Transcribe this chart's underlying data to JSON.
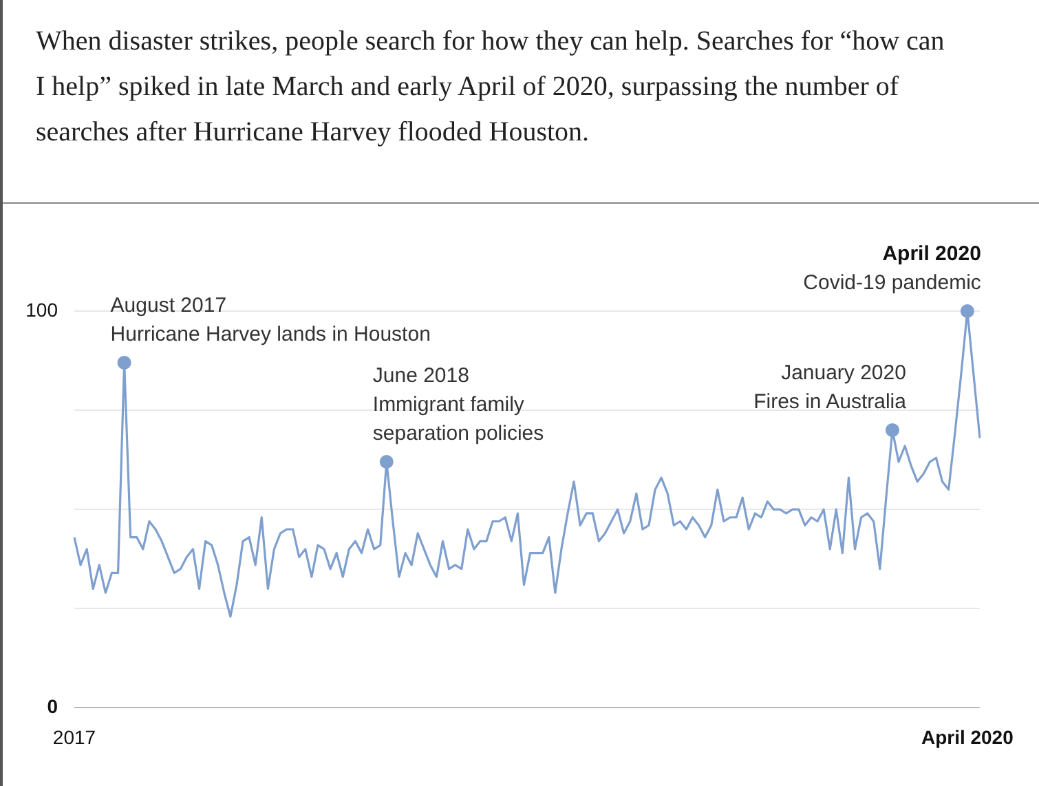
{
  "chart_data": {
    "type": "line",
    "title": "When disaster strikes, people search for how they can help. Searches for “how can I help” spiked in late March and early April of 2020, surpassing the number of searches after Hurricane Harvey flooded Houston.",
    "categories": [
      "2017",
      null,
      null,
      null,
      null,
      null,
      null,
      null,
      null,
      null,
      null,
      null,
      null,
      null,
      null,
      null,
      null,
      null,
      null,
      null,
      null,
      null,
      null,
      null,
      null,
      null,
      null,
      null,
      null,
      null,
      null,
      null,
      null,
      null,
      null,
      null,
      null,
      null,
      null,
      null,
      null,
      null,
      null,
      null,
      null,
      null,
      null,
      null,
      null,
      null,
      null,
      null,
      null,
      null,
      null,
      null,
      null,
      null,
      null,
      null,
      null,
      null,
      null,
      null,
      null,
      null,
      null,
      null,
      null,
      null,
      null,
      null,
      null,
      null,
      null,
      null,
      null,
      null,
      null,
      null,
      null,
      null,
      null,
      null,
      null,
      null,
      null,
      null,
      null,
      null,
      null,
      null,
      null,
      null,
      null,
      null,
      null,
      null,
      null,
      null,
      null,
      null,
      null,
      null,
      null,
      null,
      null,
      null,
      null,
      null,
      null,
      null,
      null,
      null,
      null,
      null,
      null,
      null,
      null,
      null,
      null,
      null,
      null,
      null,
      null,
      null,
      null,
      null,
      null,
      null,
      null,
      null,
      null,
      null,
      null,
      null,
      null,
      null,
      null,
      null,
      null,
      null,
      null,
      "April 2020",
      null,
      null
    ],
    "series": [
      {
        "color": "#7f9fcf",
        "values": [
          43,
          36,
          40,
          30,
          36,
          29,
          34,
          34,
          87,
          43,
          43,
          40,
          47,
          45,
          42,
          38,
          34,
          35,
          38,
          40,
          30,
          42,
          41,
          36,
          29,
          23,
          31,
          42,
          43,
          36,
          48,
          30,
          40,
          44,
          45,
          45,
          38,
          40,
          33,
          41,
          40,
          35,
          39,
          33,
          40,
          42,
          39,
          45,
          40,
          41,
          62,
          47,
          33,
          39,
          36,
          44,
          40,
          36,
          33,
          42,
          35,
          36,
          35,
          45,
          40,
          42,
          42,
          47,
          47,
          48,
          42,
          49,
          31,
          39,
          39,
          39,
          43,
          29,
          40,
          49,
          57,
          46,
          49,
          49,
          42,
          44,
          47,
          50,
          44,
          47,
          54,
          45,
          46,
          55,
          58,
          54,
          46,
          47,
          45,
          48,
          46,
          43,
          46,
          55,
          47,
          48,
          48,
          53,
          45,
          49,
          48,
          52,
          50,
          50,
          49,
          50,
          50,
          46,
          48,
          47,
          50,
          40,
          50,
          39,
          58,
          40,
          48,
          49,
          47,
          35,
          53,
          70,
          62,
          66,
          61,
          57,
          59,
          62,
          63,
          57,
          55,
          69,
          84,
          100,
          84,
          68
        ]
      }
    ],
    "ylim": [
      0,
      100
    ],
    "yticks": [
      0,
      {
        "value": 25,
        "label": null
      },
      {
        "value": 50,
        "label": null
      },
      {
        "value": 75,
        "label": null
      },
      100
    ],
    "grid": "y",
    "marker": "none",
    "line_style": "solid",
    "annotations": [
      "August 2017\nHurricane Harvey lands in Houston",
      "June 2018\nImmigrant family\nseparation policies",
      "January 2020\nFires in Australia",
      {
        "text": "April 2020\nCovid-19 pandemic",
        "x": "April 2020",
        "y": 100
      }
    ]
  }
}
